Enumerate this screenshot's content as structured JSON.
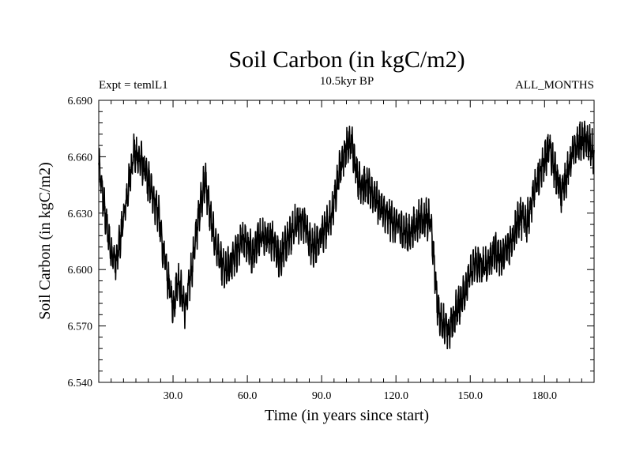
{
  "chart_data": {
    "type": "line",
    "title": "Soil Carbon (in kgC/m2)",
    "subtitle_left": "Expt = temlL1",
    "subtitle_center": "10.5kyr BP",
    "subtitle_right": "ALL_MONTHS",
    "xlabel": "Time (in years since start)",
    "ylabel": "Soil Carbon (in kgC/m2)",
    "xlim": [
      0,
      200
    ],
    "ylim": [
      6.54,
      6.69
    ],
    "x_ticks": [
      30,
      60,
      90,
      120,
      150,
      180
    ],
    "x_tick_labels": [
      "30.0",
      "60.0",
      "90.0",
      "120.0",
      "150.0",
      "180.0"
    ],
    "y_ticks": [
      6.54,
      6.57,
      6.6,
      6.63,
      6.66,
      6.69
    ],
    "y_tick_labels": [
      "6.540",
      "6.570",
      "6.600",
      "6.630",
      "6.660",
      "6.690"
    ],
    "series": [
      {
        "name": "Soil Carbon",
        "sampling": "monthly (seasonal cycle amplitude ~0.012 kgC/m2)",
        "seasonal_amplitude": 0.012,
        "envelope_x": [
          0,
          3,
          5,
          7,
          11,
          14,
          17,
          21,
          24,
          26,
          28,
          30,
          32,
          35,
          38,
          41,
          43,
          46,
          49,
          51,
          55,
          59,
          62,
          65,
          70,
          73,
          77,
          80,
          83,
          86,
          90,
          94,
          97,
          100,
          102,
          105,
          110,
          115,
          120,
          125,
          130,
          134,
          135,
          137,
          139,
          141,
          144,
          148,
          152,
          156,
          160,
          163,
          166,
          170,
          173,
          176,
          179,
          182,
          185,
          187,
          190,
          192,
          195,
          197,
          199,
          200
        ],
        "envelope_y": [
          6.655,
          6.625,
          6.61,
          6.603,
          6.635,
          6.662,
          6.658,
          6.643,
          6.63,
          6.61,
          6.594,
          6.58,
          6.595,
          6.579,
          6.605,
          6.635,
          6.648,
          6.62,
          6.605,
          6.598,
          6.608,
          6.617,
          6.608,
          6.619,
          6.616,
          6.606,
          6.617,
          6.625,
          6.625,
          6.611,
          6.618,
          6.628,
          6.652,
          6.665,
          6.668,
          6.647,
          6.642,
          6.63,
          6.624,
          6.618,
          6.628,
          6.625,
          6.61,
          6.578,
          6.572,
          6.566,
          6.577,
          6.59,
          6.603,
          6.601,
          6.61,
          6.606,
          6.614,
          6.628,
          6.625,
          6.642,
          6.655,
          6.665,
          6.648,
          6.641,
          6.655,
          6.664,
          6.669,
          6.668,
          6.664,
          6.66
        ]
      }
    ]
  }
}
